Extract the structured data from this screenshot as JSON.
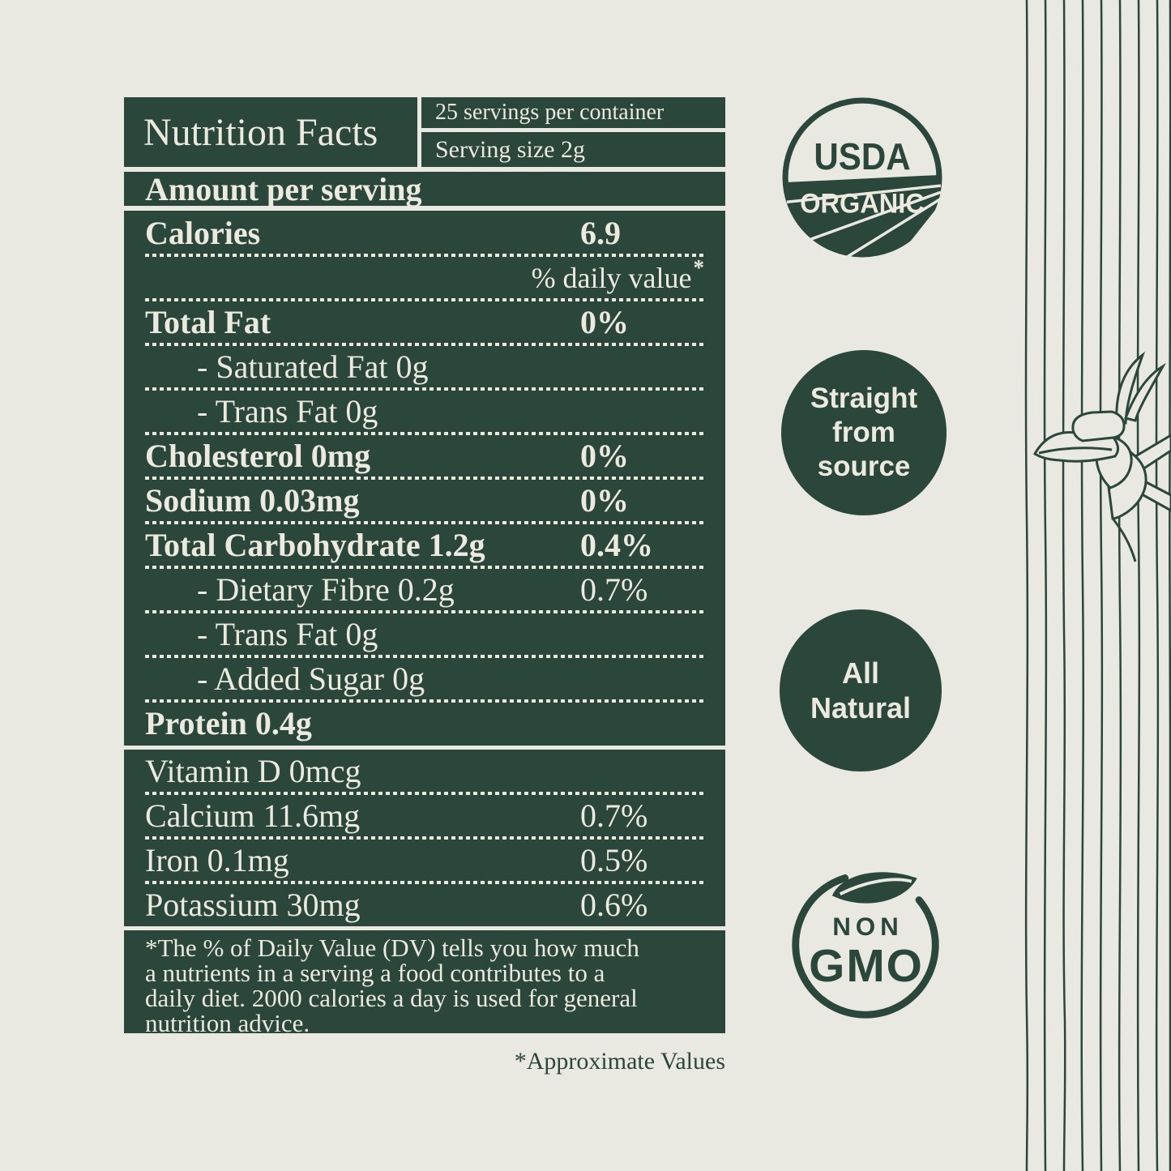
{
  "colors": {
    "background": "#e9e8e1",
    "green": "#2b463a",
    "cream": "#ece9df"
  },
  "label": {
    "title": "Nutrition Facts",
    "servings_per_container": "25 servings per container",
    "serving_size": "Serving size 2g",
    "amount_per_serving": "Amount per serving",
    "calories": {
      "label": "Calories",
      "value": "6.9"
    },
    "daily_value_header": "% daily value",
    "daily_value_star": "*",
    "rows": [
      {
        "label": "Total Fat",
        "value": "0%",
        "bold": true,
        "indent": false
      },
      {
        "label": "- Saturated Fat 0g",
        "value": "",
        "bold": false,
        "indent": true
      },
      {
        "label": "- Trans Fat 0g",
        "value": "",
        "bold": false,
        "indent": true
      },
      {
        "label": "Cholesterol 0mg",
        "value": "0%",
        "bold": true,
        "indent": false
      },
      {
        "label": "Sodium 0.03mg",
        "value": "0%",
        "bold": true,
        "indent": false
      },
      {
        "label": "Total Carbohydrate 1.2g",
        "value": "0.4%",
        "bold": true,
        "indent": false
      },
      {
        "label": "- Dietary Fibre 0.2g",
        "value": "0.7%",
        "bold": false,
        "indent": true
      },
      {
        "label": "- Trans Fat 0g",
        "value": "",
        "bold": false,
        "indent": true
      },
      {
        "label": "- Added Sugar 0g",
        "value": "",
        "bold": false,
        "indent": true
      },
      {
        "label": "Protein 0.4g",
        "value": "",
        "bold": true,
        "indent": false
      }
    ],
    "minerals": [
      {
        "label": "Vitamin D 0mcg",
        "value": "",
        "bold": false,
        "indent": false
      },
      {
        "label": "Calcium 11.6mg",
        "value": "0.7%",
        "bold": false,
        "indent": false
      },
      {
        "label": "Iron 0.1mg",
        "value": "0.5%",
        "bold": false,
        "indent": false
      },
      {
        "label": "Potassium 30mg",
        "value": "0.6%",
        "bold": false,
        "indent": false
      }
    ],
    "footnote_lines": [
      "*The % of Daily Value (DV) tells you how much",
      "a nutrients in a serving a food contributes to a",
      "daily diet. 2000 calories a day is used for general",
      "nutrition advice."
    ],
    "approximate_note": "*Approximate Values"
  },
  "badges": {
    "usda": {
      "top": "USDA",
      "bottom": "ORGANIC"
    },
    "straight_from_source": {
      "line1": "Straight",
      "line2": "from",
      "line3": "source"
    },
    "all_natural": {
      "line1": "All",
      "line2": "Natural"
    },
    "non_gmo": {
      "line1": "NON",
      "line2": "GMO"
    }
  }
}
